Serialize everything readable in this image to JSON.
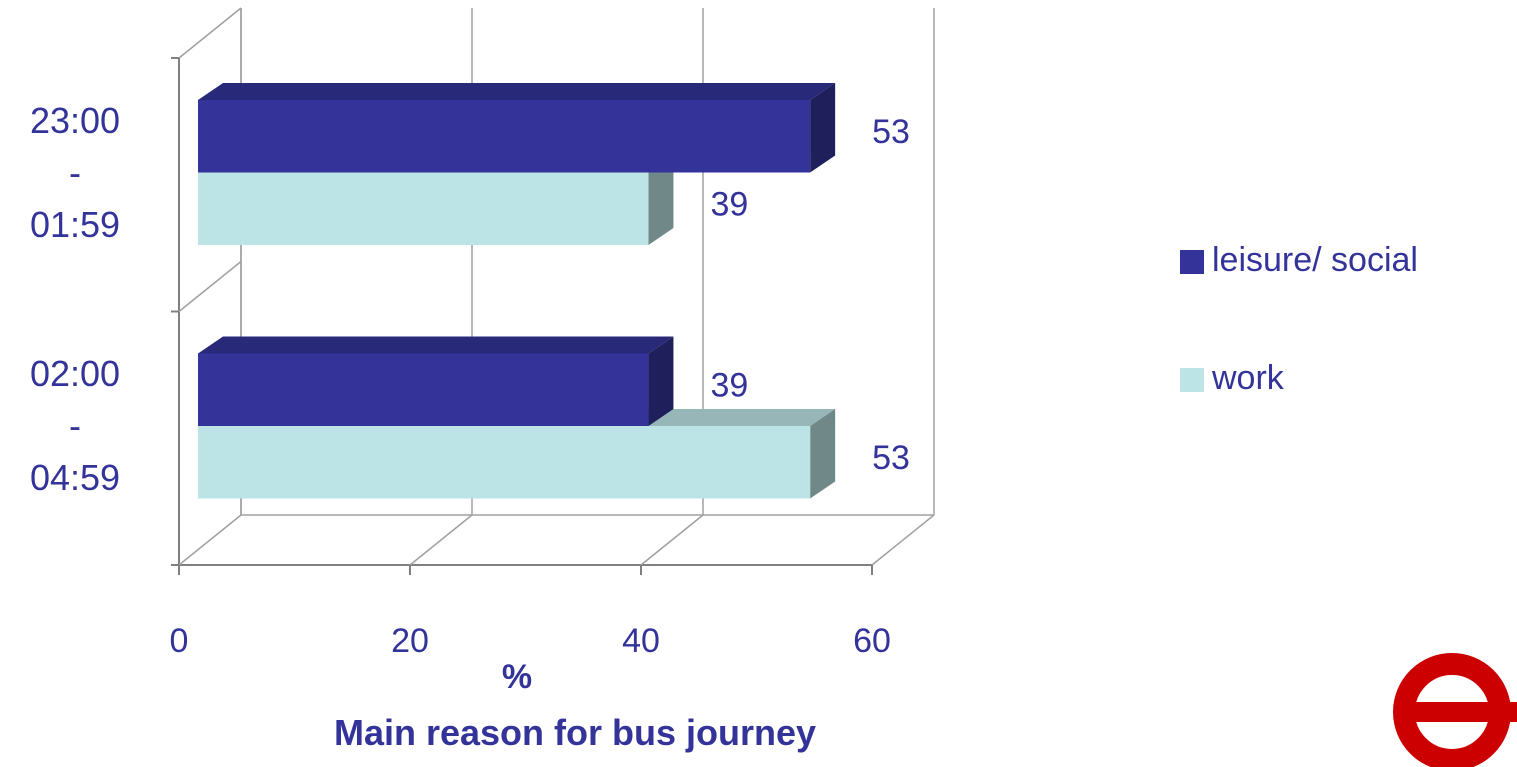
{
  "chart_data": {
    "type": "bar3d",
    "orientation": "horizontal",
    "title": "Main reason for bus journey",
    "x_label": "%",
    "categories": [
      "23:00\n-\n01:59",
      "02:00\n-\n04:59"
    ],
    "series": [
      {
        "name": "leisure/ social",
        "color": "#333399",
        "values": [
          53,
          39
        ]
      },
      {
        "name": "work",
        "color": "#bce3e5",
        "values": [
          39,
          53
        ]
      }
    ],
    "xlim": [
      0,
      60
    ],
    "xticks": [
      0,
      20,
      40,
      60
    ],
    "grid": true,
    "legend": "right"
  }
}
